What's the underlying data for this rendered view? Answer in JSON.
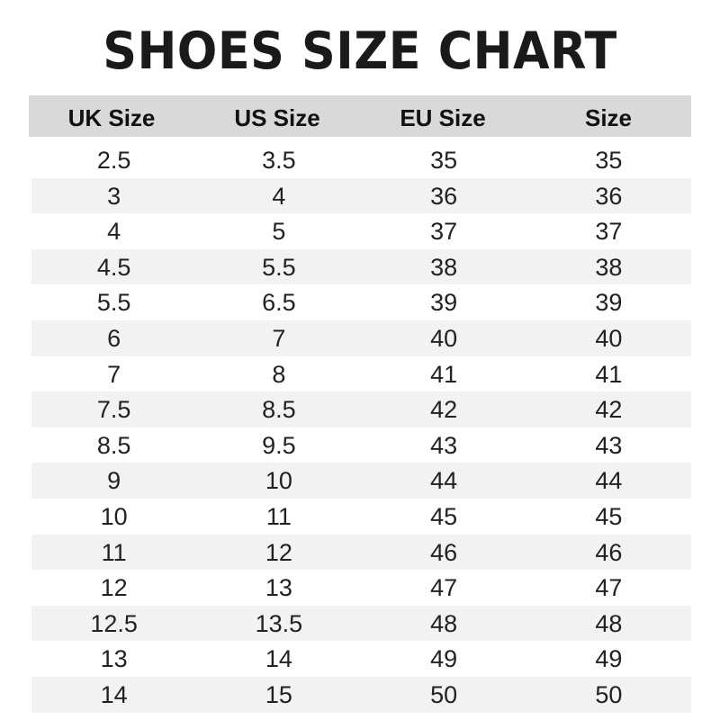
{
  "title": "SHOES SIZE CHART",
  "table": {
    "headers": [
      "UK Size",
      "US Size",
      "EU Size",
      "Size"
    ],
    "rows": [
      [
        "2.5",
        "3.5",
        "35",
        "35"
      ],
      [
        "3",
        "4",
        "36",
        "36"
      ],
      [
        "4",
        "5",
        "37",
        "37"
      ],
      [
        "4.5",
        "5.5",
        "38",
        "38"
      ],
      [
        "5.5",
        "6.5",
        "39",
        "39"
      ],
      [
        "6",
        "7",
        "40",
        "40"
      ],
      [
        "7",
        "8",
        "41",
        "41"
      ],
      [
        "7.5",
        "8.5",
        "42",
        "42"
      ],
      [
        "8.5",
        "9.5",
        "43",
        "43"
      ],
      [
        "9",
        "10",
        "44",
        "44"
      ],
      [
        "10",
        "11",
        "45",
        "45"
      ],
      [
        "11",
        "12",
        "46",
        "46"
      ],
      [
        "12",
        "13",
        "47",
        "47"
      ],
      [
        "12.5",
        "13.5",
        "48",
        "48"
      ],
      [
        "13",
        "14",
        "49",
        "49"
      ],
      [
        "14",
        "15",
        "50",
        "50"
      ]
    ]
  },
  "colors": {
    "header_bg": "#d9d9d9",
    "stripe_bg": "#f2f2f2"
  }
}
